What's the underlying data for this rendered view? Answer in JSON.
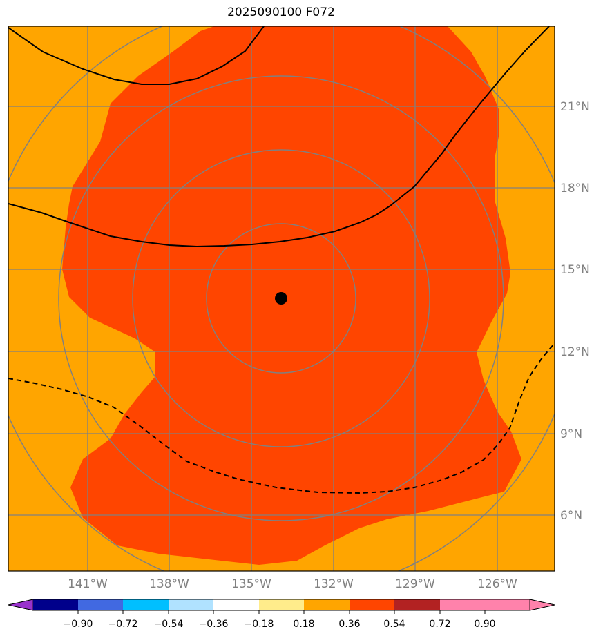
{
  "title": "2025090100 F072",
  "map": {
    "lon_labels": [
      "141°W",
      "138°W",
      "135°W",
      "132°W",
      "129°W",
      "126°W"
    ],
    "lat_labels": [
      "21°N",
      "18°N",
      "15°N",
      "12°N",
      "9°N",
      "6°N"
    ],
    "background_color": "#ffa500",
    "shaded_color": "#ff4500",
    "grid_color": "#808080",
    "center_marker": "black-dot"
  },
  "colorbar": {
    "ticks": [
      "−0.90",
      "−0.72",
      "−0.54",
      "−0.36",
      "−0.18",
      "0.18",
      "0.36",
      "0.54",
      "0.72",
      "0.90"
    ],
    "colors": [
      "#9932cc",
      "#00008b",
      "#4169e1",
      "#00bfff",
      "#b0e2ff",
      "#ffffff",
      "#ffec8b",
      "#ffa500",
      "#ff4500",
      "#b22222",
      "#ff82ab"
    ]
  }
}
